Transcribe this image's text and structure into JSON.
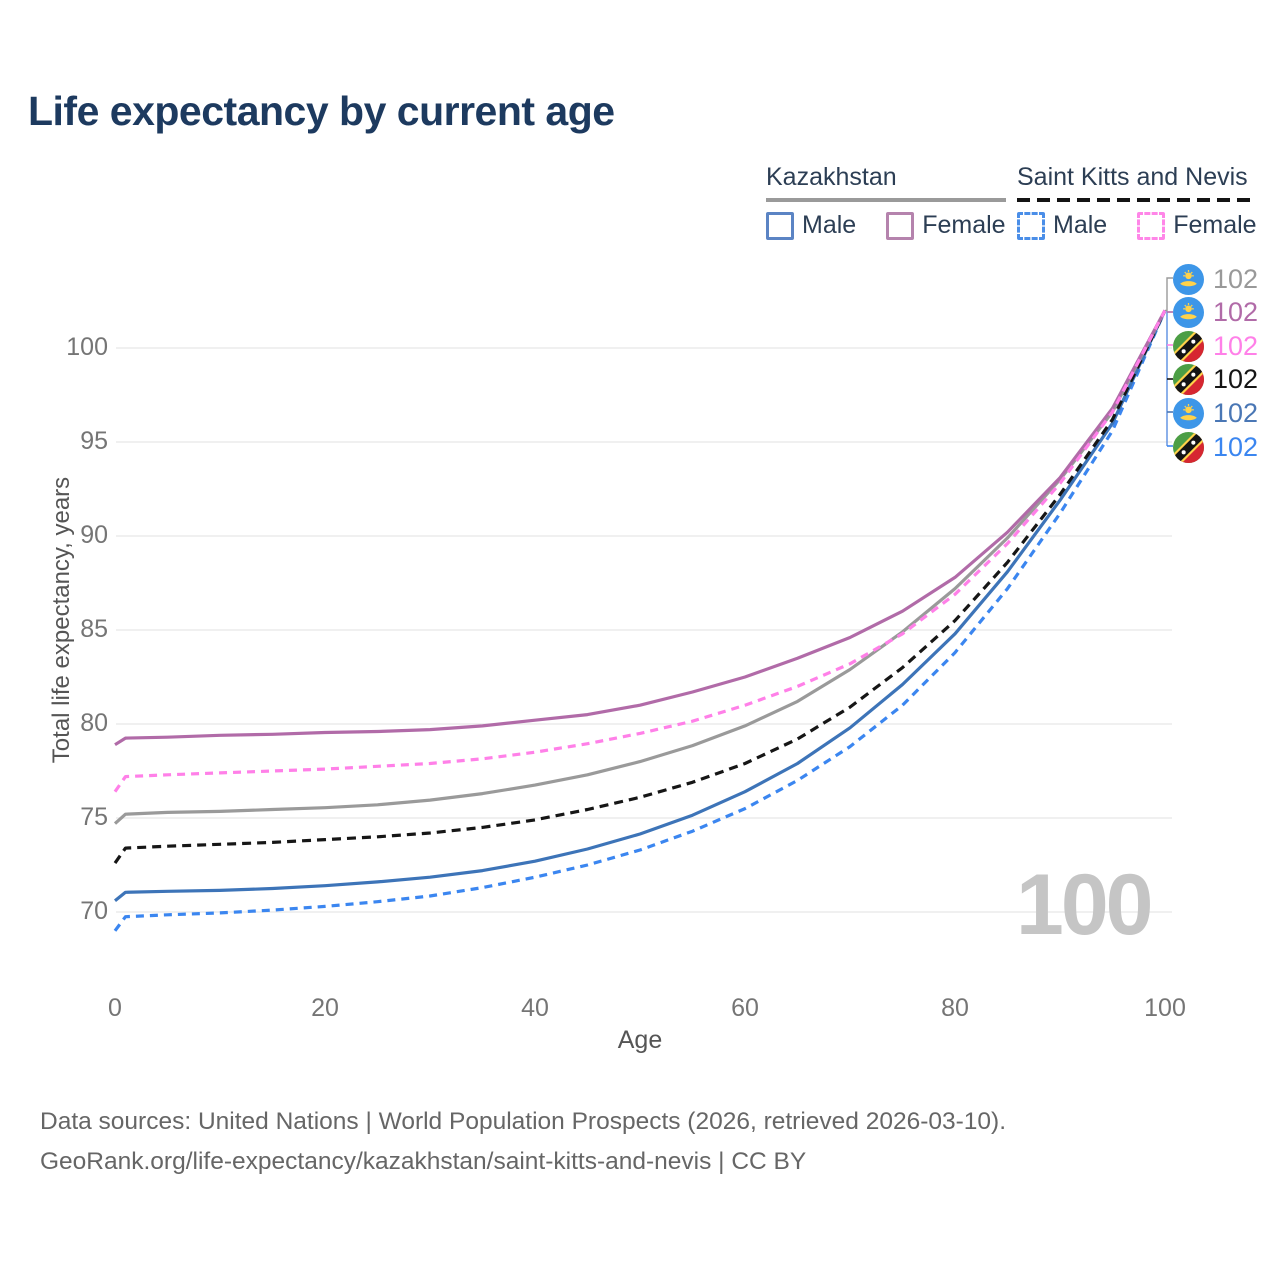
{
  "title": "Life expectancy by current age",
  "legend": {
    "groups": [
      {
        "name": "Kazakhstan",
        "line_style": "solid",
        "underline_color": "#9a9a9a",
        "items": [
          {
            "label": "Male",
            "color": "#3d74b8"
          },
          {
            "label": "Female",
            "color": "#b16ba8"
          }
        ]
      },
      {
        "name": "Saint Kitts and Nevis",
        "line_style": "dashed",
        "underline_color": "#141414",
        "items": [
          {
            "label": "Male",
            "color": "#3b86f0"
          },
          {
            "label": "Female",
            "color": "#ff80e8"
          }
        ]
      }
    ]
  },
  "chart_data": {
    "type": "line",
    "title": "Life expectancy by current age",
    "xlabel": "Age",
    "ylabel": "Total life expectancy, years",
    "x_ticks": [
      0,
      20,
      40,
      60,
      80,
      100
    ],
    "y_ticks": [
      70,
      75,
      80,
      85,
      90,
      95,
      100
    ],
    "xlim": [
      0,
      100
    ],
    "ylim": [
      68.5,
      103
    ],
    "grid": "horizontal",
    "legend_position": "top-right",
    "x": [
      0,
      1,
      5,
      10,
      15,
      20,
      25,
      30,
      35,
      40,
      45,
      50,
      55,
      60,
      65,
      70,
      75,
      80,
      85,
      90,
      95,
      100
    ],
    "series": [
      {
        "name": "Saint Kitts and Nevis - Male",
        "color": "#3b86f0",
        "dash": "8 6",
        "values": [
          69.0,
          69.75,
          69.85,
          69.95,
          70.1,
          70.3,
          70.55,
          70.85,
          71.3,
          71.85,
          72.5,
          73.3,
          74.3,
          75.5,
          77.0,
          78.8,
          81.0,
          83.8,
          87.2,
          91.2,
          95.6,
          102
        ]
      },
      {
        "name": "Kazakhstan - Male",
        "color": "#3d74b8",
        "dash": null,
        "values": [
          70.6,
          71.05,
          71.1,
          71.15,
          71.25,
          71.4,
          71.6,
          71.85,
          72.2,
          72.7,
          73.35,
          74.15,
          75.15,
          76.4,
          77.9,
          79.8,
          82.1,
          84.8,
          88.1,
          91.9,
          96.0,
          102
        ]
      },
      {
        "name": "Saint Kitts and Nevis - Both sexes",
        "color": "#161616",
        "dash": "9 6",
        "values": [
          72.6,
          73.4,
          73.5,
          73.6,
          73.7,
          73.85,
          74.0,
          74.2,
          74.5,
          74.9,
          75.45,
          76.1,
          76.9,
          77.9,
          79.2,
          80.9,
          83.0,
          85.5,
          88.6,
          92.2,
          96.2,
          102
        ]
      },
      {
        "name": "Kazakhstan - Both sexes",
        "color": "#9a9a9a",
        "dash": null,
        "values": [
          74.7,
          75.2,
          75.3,
          75.35,
          75.45,
          75.55,
          75.7,
          75.95,
          76.3,
          76.75,
          77.3,
          78.0,
          78.85,
          79.9,
          81.2,
          82.9,
          84.9,
          87.2,
          89.9,
          93.0,
          96.6,
          102
        ]
      },
      {
        "name": "Kazakhstan - Female",
        "color": "#b16ba8",
        "dash": null,
        "values": [
          78.9,
          79.25,
          79.3,
          79.4,
          79.45,
          79.55,
          79.6,
          79.7,
          79.9,
          80.2,
          80.5,
          81.0,
          81.7,
          82.5,
          83.5,
          84.6,
          86.0,
          87.8,
          90.2,
          93.1,
          96.8,
          102
        ]
      },
      {
        "name": "Saint Kitts and Nevis - Female",
        "color": "#ff80e8",
        "dash": "8 6",
        "values": [
          76.4,
          77.2,
          77.3,
          77.4,
          77.5,
          77.6,
          77.75,
          77.9,
          78.15,
          78.5,
          78.95,
          79.5,
          80.15,
          81.0,
          82.0,
          83.2,
          84.8,
          86.9,
          89.6,
          92.8,
          96.6,
          102
        ]
      }
    ]
  },
  "end_labels": [
    {
      "flag": "kz",
      "value": "102",
      "color": "#999999",
      "series": "Kazakhstan - Both sexes"
    },
    {
      "flag": "kz",
      "value": "102",
      "color": "#b16ba8",
      "series": "Kazakhstan - Female"
    },
    {
      "flag": "kn",
      "value": "102",
      "color": "#ff80e8",
      "series": "Saint Kitts and Nevis - Female"
    },
    {
      "flag": "kn",
      "value": "102",
      "color": "#161616",
      "series": "Saint Kitts and Nevis - Both sexes"
    },
    {
      "flag": "kz",
      "value": "102",
      "color": "#4a77b5",
      "series": "Kazakhstan - Male"
    },
    {
      "flag": "kn",
      "value": "102",
      "color": "#3b86f0",
      "series": "Saint Kitts and Nevis - Male"
    }
  ],
  "watermark": "100",
  "footer": {
    "line1": "Data sources: United Nations | World Population Prospects (2026, retrieved 2026-03-10).",
    "line2": "GeoRank.org/life-expectancy/kazakhstan/saint-kitts-and-nevis | CC BY"
  }
}
